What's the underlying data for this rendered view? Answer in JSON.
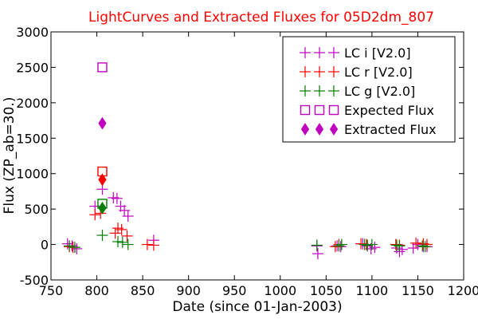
{
  "chart_data": {
    "type": "scatter",
    "title": "LightCurves and Extracted Fluxes for 05D2dm_807",
    "title_color": "#ff0000",
    "xlabel": "Date (since 01-Jan-2003)",
    "ylabel": "Flux (ZP_ab=30.)",
    "xlim": [
      750,
      1200
    ],
    "ylim": [
      -500,
      3000
    ],
    "xticks": [
      750,
      800,
      850,
      900,
      950,
      1000,
      1050,
      1100,
      1150,
      1200
    ],
    "yticks": [
      -500,
      0,
      500,
      1000,
      1500,
      2000,
      2500,
      3000
    ],
    "grid": false,
    "legend_position": "top-right",
    "series": [
      {
        "name": "LC i [V2.0]",
        "color": "#bf00bf",
        "marker": "plus",
        "points": [
          [
            768,
            10
          ],
          [
            773,
            -20
          ],
          [
            778,
            -60
          ],
          [
            798,
            540
          ],
          [
            806,
            780
          ],
          [
            818,
            660
          ],
          [
            822,
            650
          ],
          [
            826,
            540
          ],
          [
            830,
            480
          ],
          [
            834,
            400
          ],
          [
            862,
            60
          ],
          [
            1040,
            -20
          ],
          [
            1041,
            -130
          ],
          [
            1062,
            -20
          ],
          [
            1066,
            -30
          ],
          [
            1090,
            10
          ],
          [
            1095,
            -20
          ],
          [
            1099,
            -60
          ],
          [
            1103,
            -40
          ],
          [
            1127,
            -50
          ],
          [
            1130,
            -100
          ],
          [
            1133,
            -70
          ],
          [
            1145,
            -50
          ],
          [
            1150,
            0
          ],
          [
            1156,
            -30
          ],
          [
            1160,
            -30
          ]
        ]
      },
      {
        "name": "LC r [V2.0]",
        "color": "#ff0000",
        "marker": "plus",
        "points": [
          [
            770,
            -30
          ],
          [
            774,
            -40
          ],
          [
            798,
            420
          ],
          [
            804,
            440
          ],
          [
            820,
            160
          ],
          [
            823,
            230
          ],
          [
            827,
            210
          ],
          [
            833,
            120
          ],
          [
            855,
            0
          ],
          [
            862,
            -10
          ],
          [
            1060,
            -30
          ],
          [
            1064,
            0
          ],
          [
            1088,
            10
          ],
          [
            1094,
            0
          ],
          [
            1126,
            0
          ],
          [
            1130,
            -10
          ],
          [
            1148,
            20
          ],
          [
            1156,
            10
          ],
          [
            1160,
            0
          ]
        ]
      },
      {
        "name": "LC g [V2.0]",
        "color": "#008000",
        "marker": "plus",
        "points": [
          [
            770,
            -20
          ],
          [
            776,
            -40
          ],
          [
            806,
            130
          ],
          [
            823,
            40
          ],
          [
            828,
            30
          ],
          [
            834,
            0
          ],
          [
            1040,
            -10
          ],
          [
            1064,
            -20
          ],
          [
            1067,
            0
          ],
          [
            1092,
            0
          ],
          [
            1095,
            -10
          ],
          [
            1100,
            0
          ],
          [
            1127,
            -10
          ],
          [
            1130,
            -20
          ],
          [
            1155,
            -20
          ],
          [
            1158,
            -30
          ]
        ]
      }
    ],
    "expected_flux": {
      "name": "Expected Flux",
      "marker": "square-open",
      "points": [
        {
          "x": 806,
          "y": 2500,
          "color": "#bf00bf"
        },
        {
          "x": 806,
          "y": 1030,
          "color": "#ff0000"
        },
        {
          "x": 806,
          "y": 575,
          "color": "#008000"
        }
      ]
    },
    "extracted_flux": {
      "name": "Extracted Flux",
      "marker": "diamond-filled",
      "points": [
        {
          "x": 806,
          "y": 1710,
          "color": "#bf00bf"
        },
        {
          "x": 806,
          "y": 915,
          "color": "#ff0000"
        },
        {
          "x": 806,
          "y": 515,
          "color": "#008000"
        }
      ]
    },
    "legend": [
      {
        "label": "LC i [V2.0]",
        "color": "#bf00bf",
        "marker": "plus"
      },
      {
        "label": "LC r [V2.0]",
        "color": "#ff0000",
        "marker": "plus"
      },
      {
        "label": "LC g [V2.0]",
        "color": "#008000",
        "marker": "plus"
      },
      {
        "label": "Expected Flux",
        "color": "#bf00bf",
        "marker": "square-open"
      },
      {
        "label": "Extracted Flux",
        "color": "#bf00bf",
        "marker": "diamond-filled"
      }
    ]
  }
}
